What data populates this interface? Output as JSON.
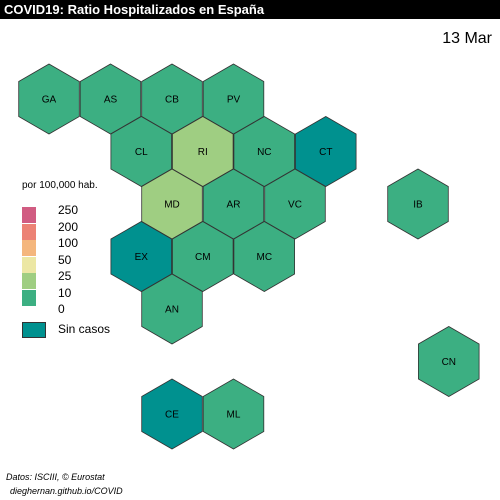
{
  "title": "COVID19: Ratio Hospitalizados en España",
  "date": "13 Mar",
  "legend": {
    "title": "por 100,000 hab.",
    "breaks": [
      "250",
      "200",
      "100",
      "50",
      "25",
      "10",
      "0"
    ],
    "colors": [
      "#d15c82",
      "#ec8275",
      "#f4b67d",
      "#ece7a4",
      "#9fce82",
      "#3caf82"
    ],
    "no_cases_label": "Sin casos",
    "no_cases_color": "#00918f"
  },
  "regions": [
    {
      "code": "GA",
      "category": "0-10",
      "color": "#3caf82",
      "row": 0,
      "col": 0
    },
    {
      "code": "AS",
      "category": "0-10",
      "color": "#3caf82",
      "row": 0,
      "col": 1
    },
    {
      "code": "CB",
      "category": "0-10",
      "color": "#3caf82",
      "row": 0,
      "col": 2
    },
    {
      "code": "PV",
      "category": "0-10",
      "color": "#3caf82",
      "row": 0,
      "col": 3
    },
    {
      "code": "CL",
      "category": "0-10",
      "color": "#3caf82",
      "row": 1,
      "col": 2
    },
    {
      "code": "RI",
      "category": "10-25",
      "color": "#9fce82",
      "row": 1,
      "col": 3
    },
    {
      "code": "NC",
      "category": "0-10",
      "color": "#3caf82",
      "row": 1,
      "col": 4
    },
    {
      "code": "CT",
      "category": "Sin casos",
      "color": "#00918f",
      "row": 1,
      "col": 5
    },
    {
      "code": "MD",
      "category": "10-25",
      "color": "#9fce82",
      "row": 2,
      "col": 2
    },
    {
      "code": "AR",
      "category": "0-10",
      "color": "#3caf82",
      "row": 2,
      "col": 3
    },
    {
      "code": "VC",
      "category": "0-10",
      "color": "#3caf82",
      "row": 2,
      "col": 4
    },
    {
      "code": "IB",
      "category": "0-10",
      "color": "#3caf82",
      "row": 2,
      "col": 6
    },
    {
      "code": "EX",
      "category": "Sin casos",
      "color": "#00918f",
      "row": 3,
      "col": 2
    },
    {
      "code": "CM",
      "category": "0-10",
      "color": "#3caf82",
      "row": 3,
      "col": 3
    },
    {
      "code": "MC",
      "category": "0-10",
      "color": "#3caf82",
      "row": 3,
      "col": 4
    },
    {
      "code": "AN",
      "category": "0-10",
      "color": "#3caf82",
      "row": 4,
      "col": 2
    },
    {
      "code": "CN",
      "category": "0-10",
      "color": "#3caf82",
      "row": 5,
      "col": 7
    },
    {
      "code": "CE",
      "category": "Sin casos",
      "color": "#00918f",
      "row": 6,
      "col": 2
    },
    {
      "code": "ML",
      "category": "0-10",
      "color": "#3caf82",
      "row": 6,
      "col": 3
    }
  ],
  "source": {
    "line1": "Datos: ISCIII, © Eurostat",
    "line2": "dieghernan.github.io/COVID"
  }
}
